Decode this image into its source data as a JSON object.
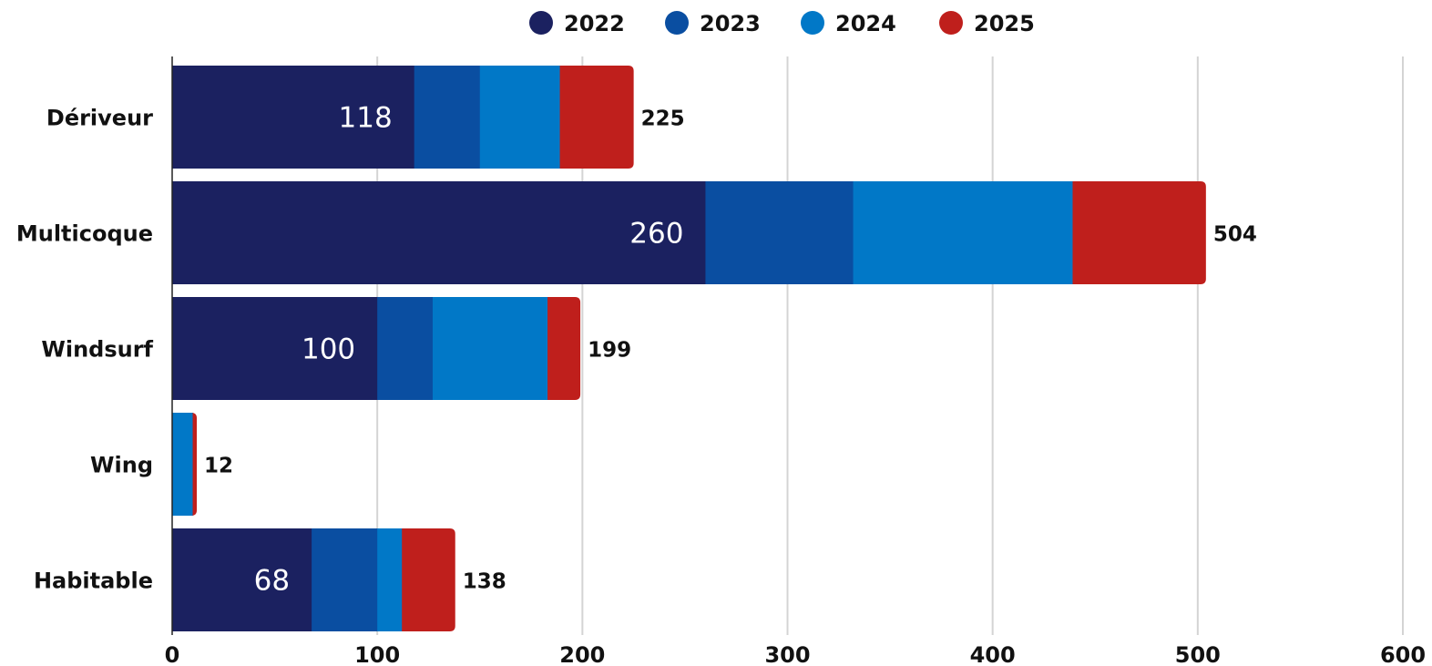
{
  "chart_data": {
    "type": "bar",
    "orientation": "horizontal",
    "stacked": true,
    "categories": [
      "Dériveur",
      "Multicoque",
      "Windsurf",
      "Wing",
      "Habitable"
    ],
    "series": [
      {
        "name": "2022",
        "color": "#1b2160",
        "values": [
          118,
          260,
          100,
          0,
          68
        ]
      },
      {
        "name": "2023",
        "color": "#0a4ea1",
        "values": [
          32,
          72,
          27,
          0,
          32
        ]
      },
      {
        "name": "2024",
        "color": "#0178c7",
        "values": [
          39,
          107,
          56,
          10,
          12
        ]
      },
      {
        "name": "2025",
        "color": "#bf1f1c",
        "values": [
          36,
          65,
          16,
          2,
          26
        ]
      }
    ],
    "totals": [
      "225",
      "504",
      "199",
      "12",
      "138"
    ],
    "inner_labels": [
      "118",
      "260",
      "100",
      "",
      "68"
    ],
    "x_ticks": [
      "0",
      "100",
      "200",
      "300",
      "400",
      "500",
      "600"
    ],
    "xlim": [
      0,
      600
    ],
    "grid": true,
    "legend_position": "top-center",
    "title": "",
    "xlabel": "",
    "ylabel": ""
  }
}
